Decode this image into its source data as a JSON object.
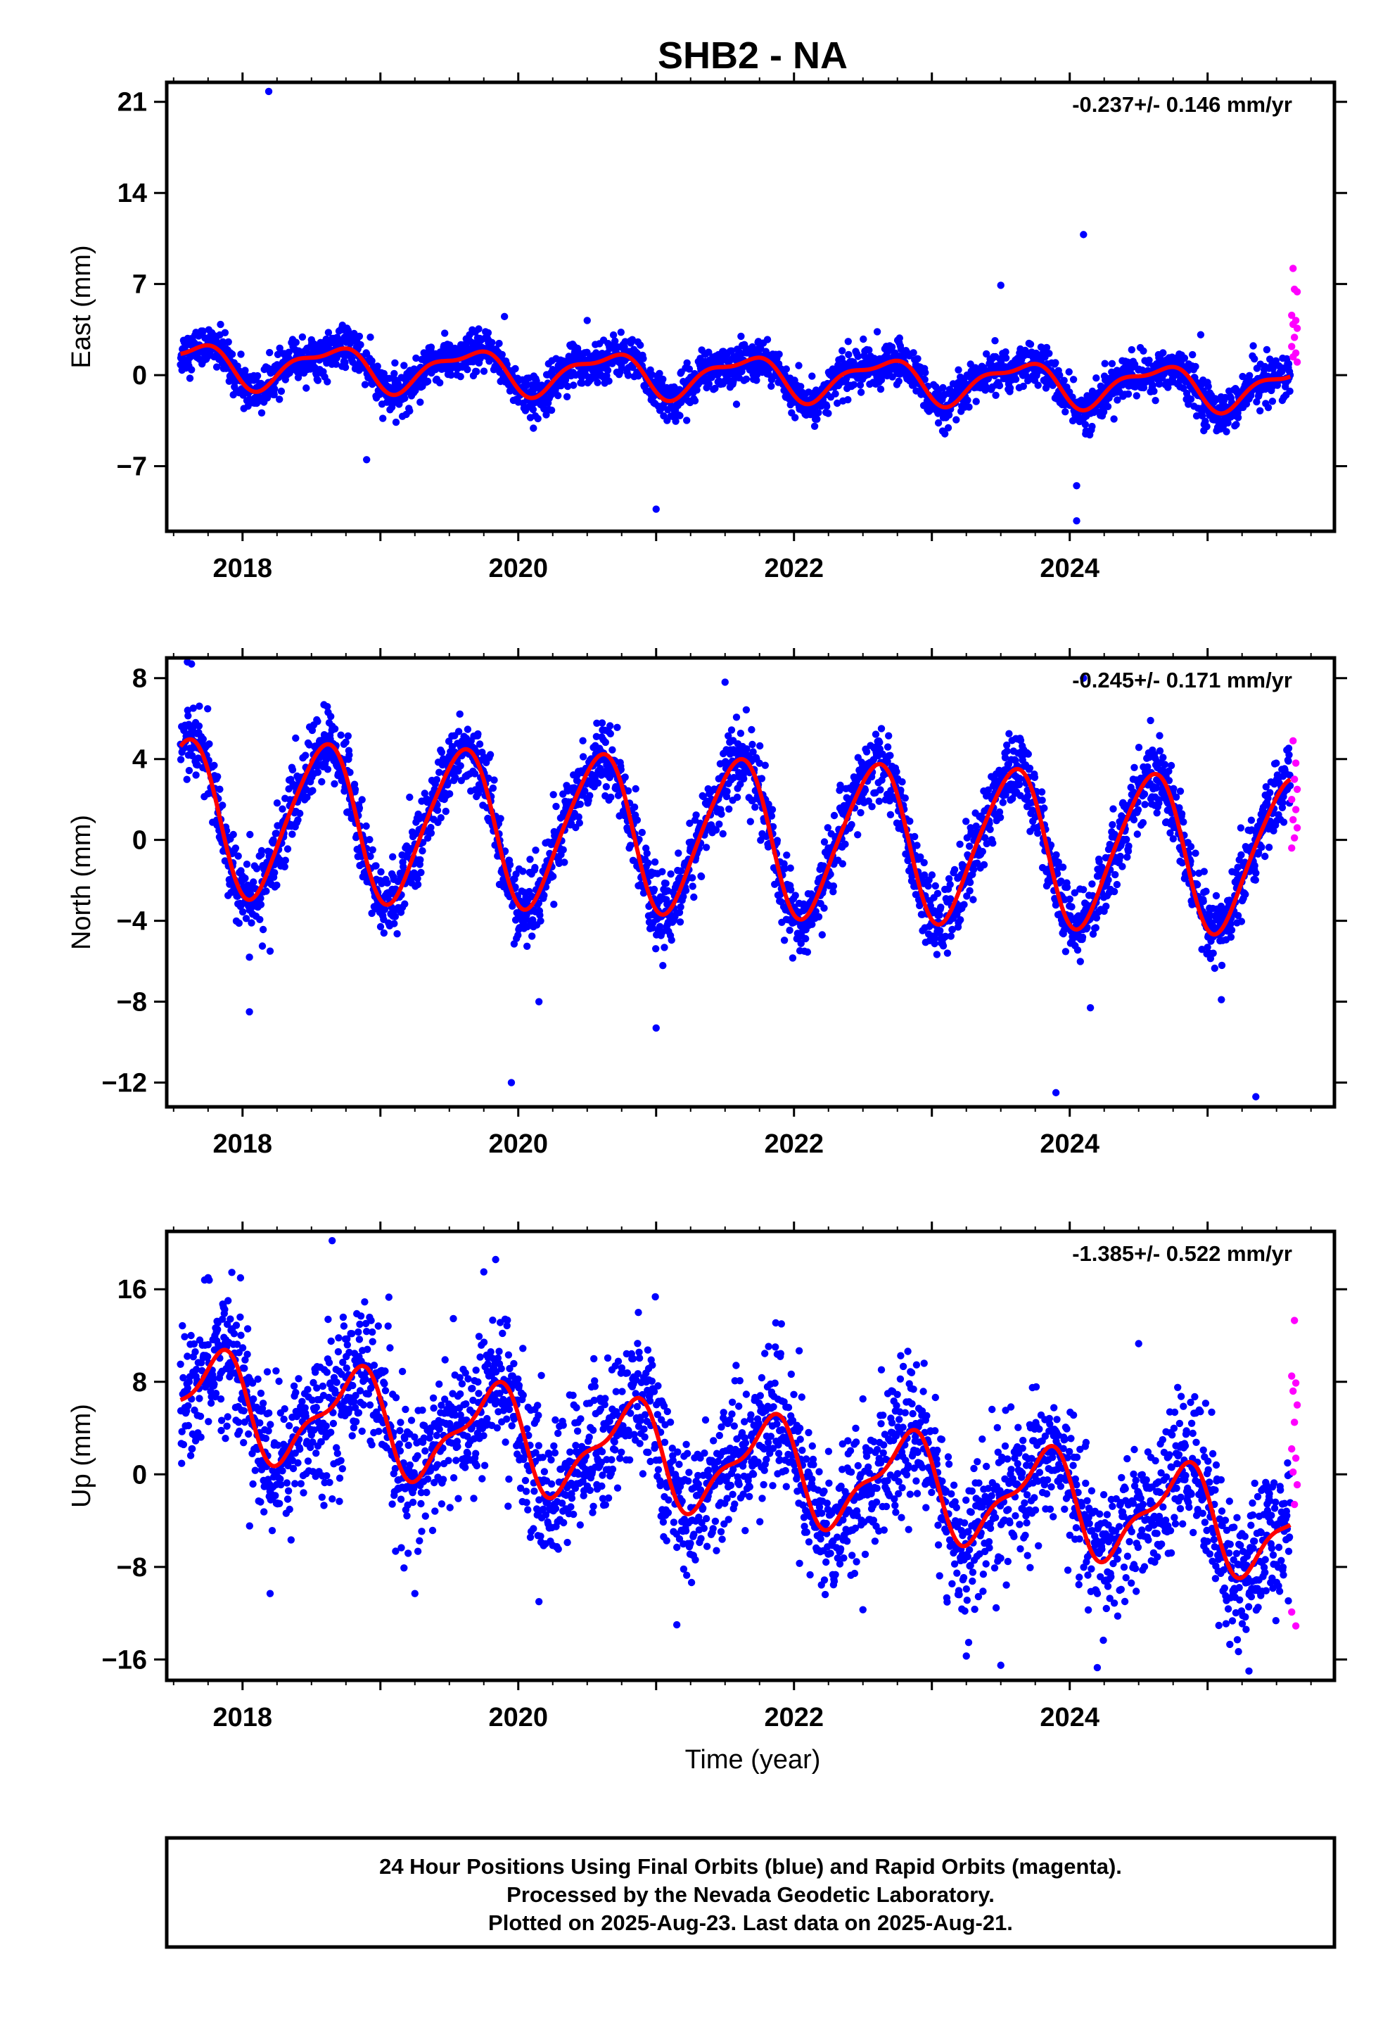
{
  "title": "SHB2 - NA",
  "xlabel": "Time (year)",
  "footer": {
    "line1": "24 Hour Positions Using Final Orbits (blue) and Rapid Orbits (magenta).",
    "line2": "Processed by the Nevada Geodetic Laboratory.",
    "line3": "Plotted on 2025-Aug-23. Last data on 2025-Aug-21."
  },
  "colors": {
    "final_orbits": "#0000ff",
    "rapid_orbits": "#ff00ff",
    "model_fit": "#ff0000",
    "frame": "#000000"
  },
  "chart_data": [
    {
      "type": "scatter",
      "panel": "east",
      "ylabel": "East (mm)",
      "rate": "-0.237+/- 0.146 mm/yr",
      "xlim": [
        2017.45,
        2025.92
      ],
      "ylim": [
        -12,
        22.5
      ],
      "x_ticks": [
        2018,
        2020,
        2022,
        2024
      ],
      "y_ticks": [
        -7,
        0,
        7,
        14,
        21
      ],
      "y_tick_labels": [
        "−7",
        "0",
        "7",
        "14",
        "21"
      ],
      "grid": false,
      "series": [
        {
          "name": "final orbits",
          "color": "#0000ff",
          "model": {
            "x_start": 2017.55,
            "x_end": 2025.6,
            "offset": 0.9,
            "trend": -0.237,
            "amp1": 1.5,
            "phase1": 0.38,
            "amp2": 0.6,
            "phase2": 0.2,
            "noise": 0.8
          },
          "outliers": [
            [
              2018.19,
              21.8
            ],
            [
              2019.9,
              4.5
            ],
            [
              2018.9,
              -6.5
            ],
            [
              2021.0,
              -10.3
            ],
            [
              2023.5,
              6.9
            ],
            [
              2024.1,
              10.8
            ],
            [
              2024.05,
              -8.5
            ],
            [
              2024.05,
              -11.2
            ],
            [
              2024.95,
              3.1
            ],
            [
              2020.5,
              4.2
            ]
          ]
        },
        {
          "name": "rapid orbits",
          "color": "#ff00ff",
          "points": [
            [
              2025.62,
              8.2
            ],
            [
              2025.63,
              6.6
            ],
            [
              2025.65,
              6.4
            ],
            [
              2025.61,
              4.6
            ],
            [
              2025.64,
              4.2
            ],
            [
              2025.62,
              3.9
            ],
            [
              2025.65,
              3.6
            ],
            [
              2025.63,
              2.9
            ],
            [
              2025.61,
              2.2
            ],
            [
              2025.64,
              1.7
            ],
            [
              2025.62,
              1.4
            ],
            [
              2025.65,
              1.0
            ]
          ]
        }
      ]
    },
    {
      "type": "scatter",
      "panel": "north",
      "ylabel": "North (mm)",
      "rate": "-0.245+/- 0.171 mm/yr",
      "xlim": [
        2017.45,
        2025.92
      ],
      "ylim": [
        -13.2,
        9
      ],
      "x_ticks": [
        2018,
        2020,
        2022,
        2024
      ],
      "y_ticks": [
        -12,
        -8,
        -4,
        0,
        4,
        8
      ],
      "y_tick_labels": [
        "−12",
        "−8",
        "−4",
        "0",
        "4",
        "8"
      ],
      "grid": false,
      "series": [
        {
          "name": "final orbits",
          "color": "#0000ff",
          "model": {
            "x_start": 2017.55,
            "x_end": 2025.6,
            "offset": 1.2,
            "trend": -0.245,
            "amp1": 3.8,
            "phase1": 0.33,
            "amp2": 0.5,
            "phase2": 0.1,
            "noise": 0.9
          },
          "outliers": [
            [
              2017.6,
              8.8
            ],
            [
              2017.63,
              8.7
            ],
            [
              2018.05,
              -5.8
            ],
            [
              2018.05,
              -8.5
            ],
            [
              2019.95,
              -12.0
            ],
            [
              2020.15,
              -8.0
            ],
            [
              2021.0,
              -9.3
            ],
            [
              2023.9,
              -12.5
            ],
            [
              2024.1,
              8.0
            ],
            [
              2024.15,
              -8.3
            ],
            [
              2025.1,
              -7.9
            ],
            [
              2025.35,
              -12.7
            ],
            [
              2021.5,
              7.8
            ],
            [
              2018.2,
              -5.5
            ]
          ]
        },
        {
          "name": "rapid orbits",
          "color": "#ff00ff",
          "points": [
            [
              2025.62,
              4.9
            ],
            [
              2025.64,
              3.8
            ],
            [
              2025.63,
              3.0
            ],
            [
              2025.65,
              2.5
            ],
            [
              2025.61,
              2.0
            ],
            [
              2025.64,
              1.5
            ],
            [
              2025.62,
              1.0
            ],
            [
              2025.65,
              0.6
            ],
            [
              2025.63,
              0.1
            ],
            [
              2025.61,
              -0.4
            ]
          ]
        }
      ]
    },
    {
      "type": "scatter",
      "panel": "up",
      "ylabel": "Up (mm)",
      "rate": "-1.385+/- 0.522 mm/yr",
      "xlim": [
        2017.45,
        2025.92
      ],
      "ylim": [
        -17.8,
        21
      ],
      "x_ticks": [
        2018,
        2020,
        2022,
        2024
      ],
      "y_ticks": [
        -16,
        -8,
        0,
        8,
        16
      ],
      "y_tick_labels": [
        "−16",
        "−8",
        "0",
        "8",
        "16"
      ],
      "grid": false,
      "series": [
        {
          "name": "final orbits",
          "color": "#0000ff",
          "model": {
            "x_start": 2017.55,
            "x_end": 2025.6,
            "offset": 6.5,
            "trend": -1.385,
            "amp1": 4.0,
            "phase1": 0.55,
            "amp2": 1.5,
            "phase2": 0.3,
            "noise": 3.0
          },
          "outliers": [
            [
              2018.65,
              20.2
            ],
            [
              2019.75,
              17.5
            ],
            [
              2017.75,
              17.0
            ],
            [
              2021.15,
              -13.0
            ],
            [
              2023.25,
              -15.7
            ],
            [
              2023.5,
              -16.5
            ],
            [
              2024.2,
              -16.7
            ],
            [
              2025.3,
              -17.0
            ],
            [
              2022.5,
              -11.7
            ],
            [
              2018.2,
              -10.3
            ],
            [
              2019.25,
              -10.3
            ],
            [
              2020.15,
              -11.0
            ],
            [
              2024.5,
              11.3
            ]
          ]
        },
        {
          "name": "rapid orbits",
          "color": "#ff00ff",
          "points": [
            [
              2025.63,
              13.3
            ],
            [
              2025.61,
              8.5
            ],
            [
              2025.64,
              7.9
            ],
            [
              2025.62,
              7.2
            ],
            [
              2025.65,
              6.0
            ],
            [
              2025.63,
              4.5
            ],
            [
              2025.61,
              2.2
            ],
            [
              2025.64,
              1.4
            ],
            [
              2025.62,
              0.2
            ],
            [
              2025.65,
              -0.9
            ],
            [
              2025.63,
              -2.6
            ],
            [
              2025.61,
              -11.9
            ],
            [
              2025.64,
              -13.1
            ]
          ]
        }
      ]
    }
  ]
}
